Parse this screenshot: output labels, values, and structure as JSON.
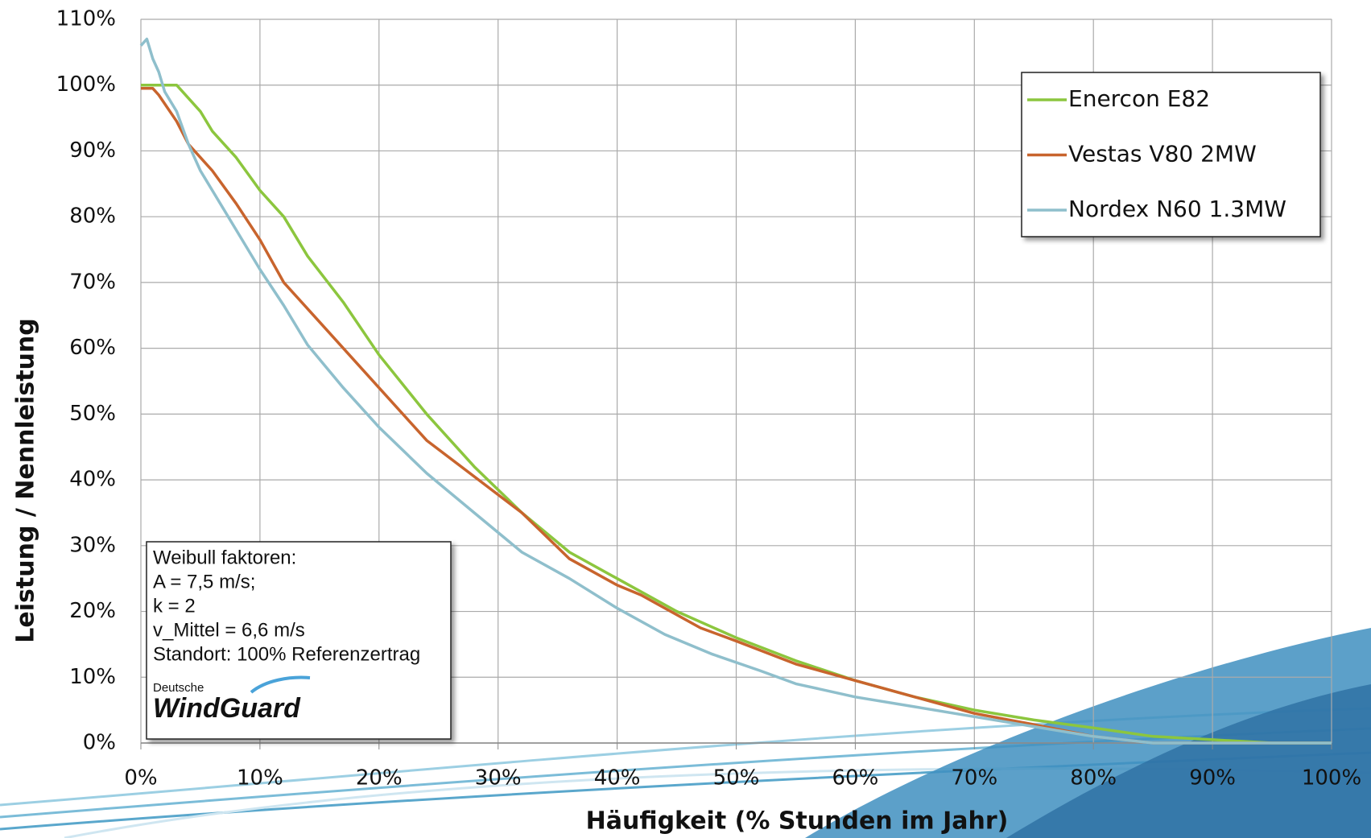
{
  "chart_data": {
    "type": "line",
    "xlabel": "Häufigkeit (% Stunden im Jahr)",
    "ylabel": "Leistung / Nennleistung",
    "xlim": [
      0,
      100
    ],
    "ylim": [
      0,
      110
    ],
    "xticks": [
      {
        "value": 0,
        "label": "0%"
      },
      {
        "value": 10,
        "label": "10%"
      },
      {
        "value": 20,
        "label": "20%"
      },
      {
        "value": 30,
        "label": "30%"
      },
      {
        "value": 40,
        "label": "40%"
      },
      {
        "value": 50,
        "label": "50%"
      },
      {
        "value": 60,
        "label": "60%"
      },
      {
        "value": 70,
        "label": "70%"
      },
      {
        "value": 80,
        "label": "80%"
      },
      {
        "value": 90,
        "label": "90%"
      },
      {
        "value": 100,
        "label": "100%"
      }
    ],
    "yticks": [
      {
        "value": 0,
        "label": "0%"
      },
      {
        "value": 10,
        "label": "10%"
      },
      {
        "value": 20,
        "label": "20%"
      },
      {
        "value": 30,
        "label": "30%"
      },
      {
        "value": 40,
        "label": "40%"
      },
      {
        "value": 50,
        "label": "50%"
      },
      {
        "value": 60,
        "label": "60%"
      },
      {
        "value": 70,
        "label": "70%"
      },
      {
        "value": 80,
        "label": "80%"
      },
      {
        "value": 90,
        "label": "90%"
      },
      {
        "value": 100,
        "label": "100%"
      },
      {
        "value": 110,
        "label": "110%"
      }
    ],
    "grid": true,
    "legend": "upper right",
    "series": [
      {
        "name": "Enercon E82",
        "color": "#8cc63e",
        "x": [
          0,
          3,
          5,
          6,
          8,
          10,
          12,
          14,
          17,
          20,
          24,
          28,
          32,
          36,
          40,
          45,
          50,
          55,
          60,
          65,
          70,
          75,
          80,
          85,
          90,
          95,
          100
        ],
        "values": [
          100,
          100,
          96,
          93,
          89,
          84,
          80,
          74,
          67,
          59,
          50,
          42,
          35,
          29,
          25,
          20,
          16,
          12.5,
          9.5,
          7,
          5,
          3.5,
          2.3,
          1,
          0.5,
          0,
          0
        ]
      },
      {
        "name": "Vestas V80 2MW",
        "color": "#c8642d",
        "x": [
          0,
          1,
          1.5,
          3,
          4,
          5,
          6,
          8,
          10,
          12,
          15,
          20,
          24,
          28,
          32,
          36,
          40,
          42,
          47,
          50,
          55,
          60,
          65,
          70,
          75,
          80,
          85,
          100
        ],
        "values": [
          99.5,
          99.5,
          98.5,
          94.5,
          91,
          89,
          87,
          82,
          76.5,
          70,
          64,
          54,
          46,
          40.5,
          35,
          28,
          24,
          22.5,
          17.5,
          15.5,
          12,
          9.5,
          7,
          4.5,
          2.8,
          1,
          0,
          0
        ]
      },
      {
        "name": "Nordex N60 1.3MW",
        "color": "#8fbfcc",
        "x": [
          0,
          0.5,
          1,
          1.5,
          2,
          3,
          4,
          5,
          6,
          8,
          10,
          12,
          14,
          17,
          20,
          24,
          28,
          32,
          36,
          40,
          44,
          48,
          52,
          55,
          60,
          65,
          70,
          75,
          80,
          85,
          100
        ],
        "values": [
          106,
          107,
          104,
          102,
          99,
          96,
          91,
          87,
          84,
          78,
          72,
          66.5,
          60.5,
          54,
          48,
          41,
          35,
          29,
          25,
          20.5,
          16.5,
          13.5,
          11,
          9,
          7,
          5.5,
          4,
          2.5,
          1,
          0,
          0
        ]
      }
    ],
    "annotation": [
      "Weibull  faktoren:",
      "A = 7,5 m/s;",
      "k = 2",
      "v_Mittel = 6,6 m/s",
      "Standort:  100% Referenzertrag"
    ],
    "logo": [
      "Deutsche",
      "WindGuard"
    ]
  }
}
